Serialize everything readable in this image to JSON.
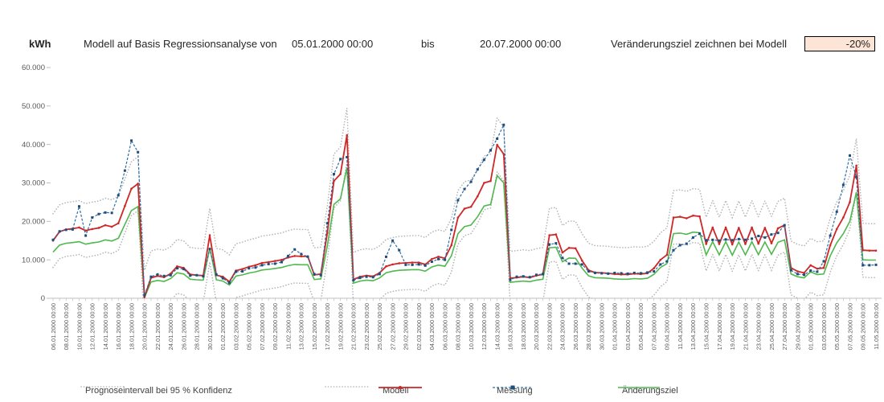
{
  "header": {
    "unit": "kWh",
    "title": "Modell auf Basis Regressionsanalyse von",
    "start_date": "05.01.2000 00:00",
    "bis": "bis",
    "end_date": "20.07.2000 00:00",
    "target_label": "Veränderungsziel zeichnen bei Modell",
    "target_value": "-20%"
  },
  "y_axis": {
    "unit": "kWh",
    "tick_labels": [
      "60.000",
      "50.000",
      "40.000",
      "30.000",
      "20.000",
      "10.000",
      "0"
    ],
    "min": 0,
    "max": 60000
  },
  "x_axis": {
    "tick_labels": [
      "06.01.2000 00:00",
      "08.01.2000 00:00",
      "10.01.2000 00:00",
      "12.01.2000 00:00",
      "14.01.2000 00:00",
      "16.01.2000 00:00",
      "18.01.2000 00:00",
      "20.01.2000 00:00",
      "22.01.2000 00:00",
      "24.01.2000 00:00",
      "26.01.2000 00:00",
      "28.01.2000 00:00",
      "30.01.2000 00:00",
      "01.02.2000 00:00",
      "03.02.2000 00:00",
      "05.02.2000 00:00",
      "07.02.2000 00:00",
      "09.02.2000 00:00",
      "11.02.2000 00:00",
      "13.02.2000 00:00",
      "15.02.2000 00:00",
      "17.02.2000 00:00",
      "19.02.2000 00:00",
      "21.02.2000 00:00",
      "23.02.2000 00:00",
      "25.02.2000 00:00",
      "27.02.2000 00:00",
      "29.02.2000 00:00",
      "02.03.2000 00:00",
      "04.03.2000 00:00",
      "06.03.2000 00:00",
      "08.03.2000 00:00",
      "10.03.2000 00:00",
      "12.03.2000 00:00",
      "14.03.2000 00:00",
      "16.03.2000 00:00",
      "18.03.2000 00:00",
      "20.03.2000 00:00",
      "22.03.2000 00:00",
      "24.03.2000 00:00",
      "26.03.2000 00:00",
      "28.03.2000 00:00",
      "30.03.2000 00:00",
      "01.04.2000 00:00",
      "03.04.2000 00:00",
      "05.04.2000 00:00",
      "07.04.2000 00:00",
      "09.04.2000 00:00",
      "11.04.2000 00:00",
      "13.04.2000 00:00",
      "15.04.2000 00:00",
      "17.04.2000 00:00",
      "19.04.2000 00:00",
      "21.04.2000 00:00",
      "23.04.2000 00:00",
      "25.04.2000 00:00",
      "27.04.2000 00:00",
      "29.04.2000 00:00",
      "01.05.2000 00:00",
      "03.05.2000 00:00",
      "05.05.2000 00:00",
      "07.05.2000 00:00",
      "09.05.2000 00:00",
      "11.05.2000 00:00"
    ]
  },
  "legend": [
    {
      "label": "Prognoseintervall bei 95 % Konfidenz",
      "style": "dotted-gray"
    },
    {
      "label": "",
      "style": "dotted-gray"
    },
    {
      "label": "Modell",
      "style": "red-marker"
    },
    {
      "label": "Messung",
      "style": "blue-marker"
    },
    {
      "label": "Änderungsziel",
      "style": "green"
    }
  ],
  "chart_data": {
    "type": "line",
    "title": "Modell auf Basis Regressionsanalyse von 05.01.2000 00:00 bis 20.07.2000 00:00",
    "ylabel": "kWh",
    "ylim": [
      0,
      60000
    ],
    "x_start": "06.01.2000 00:00",
    "x_step_days": 1,
    "n_points": 127,
    "series": [
      {
        "name": "Messung",
        "color": "#2e6da4",
        "values": [
          15200,
          17400,
          17800,
          17900,
          23900,
          16300,
          21000,
          21900,
          22300,
          22200,
          26800,
          33200,
          41000,
          38000,
          800,
          5600,
          6200,
          5800,
          6000,
          7800,
          7600,
          5900,
          6000,
          5700,
          12800,
          6200,
          5200,
          4000,
          6900,
          7000,
          7800,
          8000,
          8600,
          8900,
          9000,
          9400,
          11000,
          12700,
          11500,
          10800,
          6300,
          6000,
          19500,
          32300,
          36200,
          36700,
          4700,
          5300,
          5600,
          5500,
          6300,
          10800,
          15000,
          12500,
          8700,
          8700,
          8800,
          8500,
          9500,
          10200,
          10000,
          17800,
          25500,
          28400,
          30300,
          33500,
          36000,
          38500,
          41500,
          45100,
          4800,
          5600,
          5700,
          5500,
          6100,
          6300,
          14000,
          14300,
          10500,
          9000,
          9000,
          8800,
          7000,
          6600,
          6500,
          6400,
          6600,
          6500,
          6400,
          6600,
          6500,
          6700,
          7000,
          8800,
          9600,
          12500,
          13800,
          14200,
          15800,
          16800,
          15100,
          15200,
          15000,
          15300,
          15100,
          15400,
          15200,
          15500,
          16200,
          15800,
          16600,
          17000,
          19000,
          7300,
          6300,
          6100,
          7200,
          6900,
          9600,
          16300,
          22500,
          29500,
          37100,
          31500,
          8600,
          8600,
          8700
        ]
      },
      {
        "name": "Modell",
        "color": "#cf2626",
        "values": [
          15000,
          17300,
          17900,
          18100,
          18400,
          17600,
          18000,
          18300,
          19000,
          18600,
          19500,
          24000,
          28500,
          29800,
          300,
          5300,
          5800,
          5500,
          6400,
          8300,
          7900,
          6200,
          6000,
          5900,
          16400,
          6000,
          5600,
          4300,
          7200,
          7600,
          8200,
          8600,
          9200,
          9400,
          9700,
          10000,
          10600,
          11000,
          10900,
          10900,
          6100,
          6300,
          17000,
          30500,
          32300,
          42400,
          4900,
          5600,
          5900,
          5700,
          6600,
          8300,
          8800,
          9100,
          9200,
          9300,
          9300,
          8800,
          10200,
          10800,
          10400,
          13800,
          21000,
          23300,
          23800,
          26500,
          30000,
          30500,
          39900,
          37500,
          5200,
          5400,
          5600,
          5400,
          5900,
          6200,
          16400,
          16600,
          11900,
          13100,
          13000,
          9800,
          7300,
          6700,
          6600,
          6500,
          6300,
          6200,
          6200,
          6400,
          6300,
          6500,
          7800,
          10000,
          11300,
          21000,
          21200,
          20800,
          21500,
          21300,
          14100,
          18400,
          14100,
          18400,
          14000,
          18300,
          14100,
          18400,
          14200,
          18300,
          14300,
          18200,
          19000,
          7900,
          7000,
          6600,
          8600,
          7700,
          7900,
          13800,
          18000,
          21000,
          25000,
          34500,
          12500,
          12400,
          12400
        ]
      },
      {
        "name": "Änderungsziel",
        "color": "#4fb84f",
        "derived": "Modell × 0.8 (Veränderungsziel -20%)"
      },
      {
        "name": "Prognoseintervall oben (95 % Konfidenz)",
        "color": "#b3b3b3",
        "derived": "Modell + 7000"
      },
      {
        "name": "Prognoseintervall unten (95 % Konfidenz)",
        "color": "#b3b3b3",
        "derived": "Modell - 7000, unterhalb 0 abgeschnitten"
      }
    ]
  },
  "colors": {
    "modell": "#cf2626",
    "messung_line": "#2e6da4",
    "messung_marker": "#1f4e79",
    "aenderungsziel": "#4fb84f",
    "prognose": "#b3b3b3",
    "axis_text": "#595959",
    "axis_line": "#bfbfbf",
    "target_cell_bg": "#fce4d6"
  }
}
